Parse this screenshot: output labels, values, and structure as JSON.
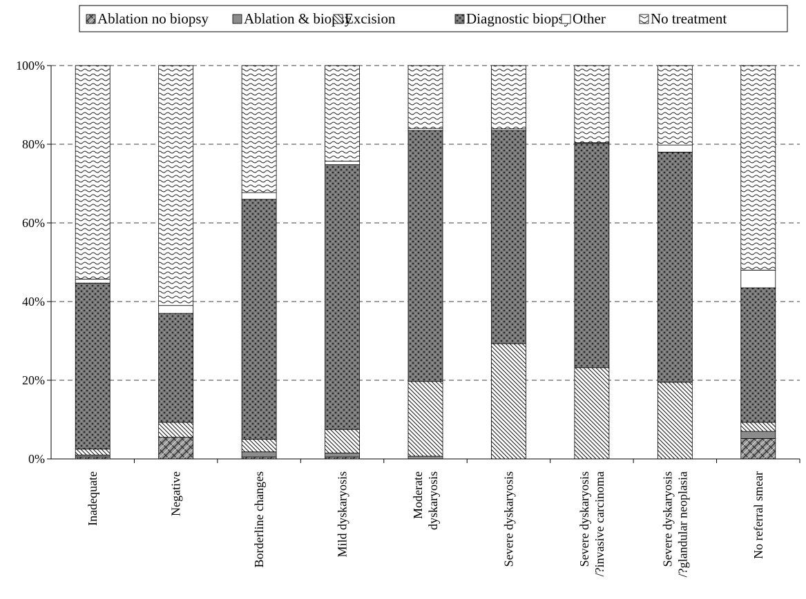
{
  "chart_data": {
    "type": "bar",
    "stacked": true,
    "percent_stacked": true,
    "categories": [
      [
        "Inadequate"
      ],
      [
        "Negative"
      ],
      [
        "Borderline changes"
      ],
      [
        "Mild dyskaryosis"
      ],
      [
        "Moderate",
        "dyskaryosis"
      ],
      [
        "Severe dyskaryosis"
      ],
      [
        "Severe dyskaryosis",
        "/?invasive carcinoma"
      ],
      [
        "Severe dyskaryosis",
        "/?glandular neoplasia"
      ],
      [
        "No referral smear"
      ]
    ],
    "series": [
      {
        "name": "Ablation no biopsy",
        "pattern": "crosshatch",
        "values": [
          0.5,
          5.5,
          0.5,
          0.5,
          0,
          0,
          0,
          0,
          5.2
        ]
      },
      {
        "name": "Ablation & biopsy",
        "pattern": "solid-gray",
        "values": [
          0.5,
          0,
          1.3,
          1.0,
          0.7,
          0,
          0,
          0,
          1.8
        ]
      },
      {
        "name": "Excision",
        "pattern": "diagonal",
        "values": [
          1.5,
          3.8,
          3.2,
          6.0,
          19.0,
          29.3,
          23.2,
          19.5,
          2.3
        ]
      },
      {
        "name": "Diagnostic biopsy",
        "pattern": "dots",
        "values": [
          42.2,
          27.7,
          61.0,
          67.3,
          63.8,
          54.2,
          57.0,
          58.5,
          34.2
        ]
      },
      {
        "name": "Other",
        "pattern": "white",
        "values": [
          1.0,
          2.0,
          1.7,
          0.9,
          0.5,
          0.4,
          0.2,
          1.8,
          4.5
        ]
      },
      {
        "name": "No treatment",
        "pattern": "wave",
        "values": [
          54.3,
          61.0,
          32.3,
          24.3,
          16.0,
          16.1,
          19.6,
          20.2,
          52.0
        ]
      }
    ],
    "yticks": [
      "0%",
      "20%",
      "40%",
      "60%",
      "80%",
      "100%"
    ],
    "ylim": [
      0,
      100
    ],
    "grid": true,
    "legend_position": "top-right"
  }
}
